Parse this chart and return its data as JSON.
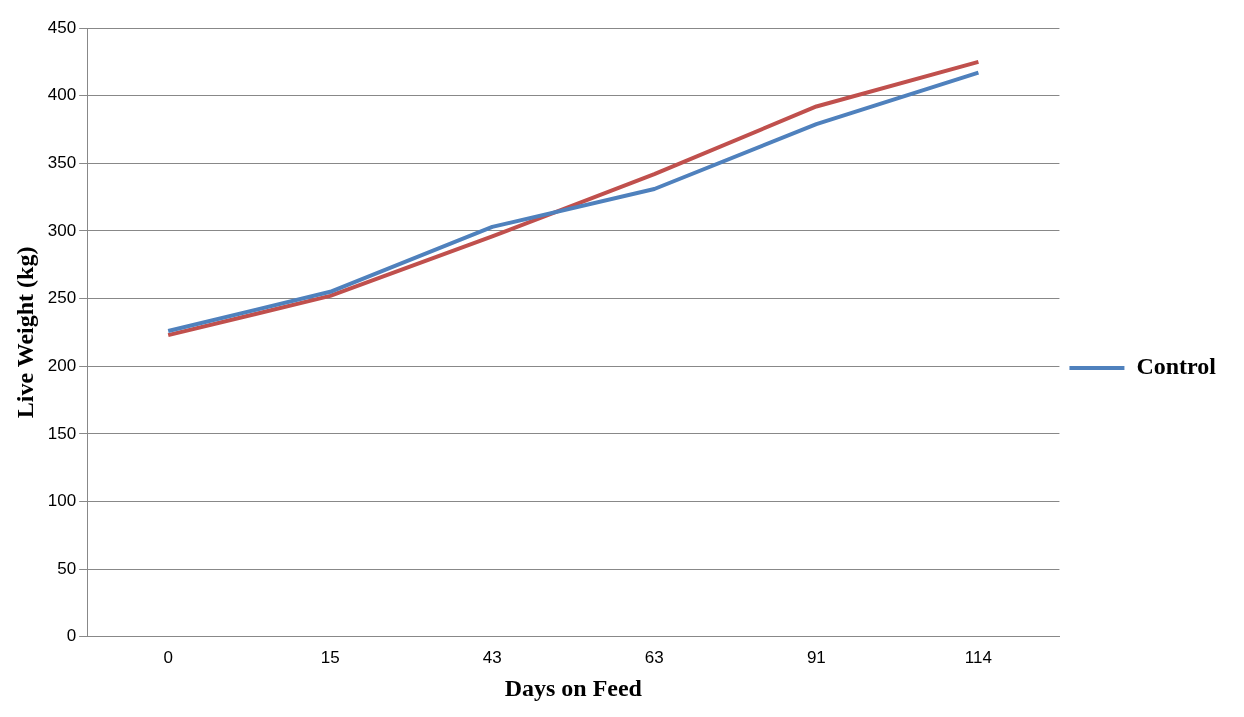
{
  "chart_data": {
    "type": "line",
    "xlabel": "Days on Feed",
    "ylabel": "Live Weight (kg)",
    "categories": [
      "0",
      "15",
      "43",
      "63",
      "91",
      "114"
    ],
    "series": [
      {
        "name": "Control",
        "color": "#4f81bd",
        "values": [
          226,
          255,
          303,
          331,
          379,
          417
        ]
      },
      {
        "color": "#c0504d",
        "values": [
          223,
          252,
          296,
          342,
          392,
          425
        ]
      }
    ],
    "ylim": [
      0,
      450
    ],
    "yticks": [
      0,
      50,
      100,
      150,
      200,
      250,
      300,
      350,
      400,
      450
    ],
    "grid": "y",
    "legend": "right",
    "marker": "none",
    "line_style": "solid"
  }
}
